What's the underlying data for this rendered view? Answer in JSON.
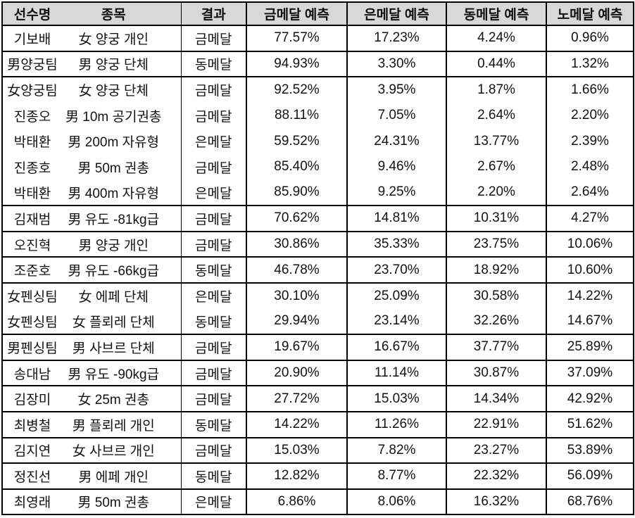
{
  "style": {
    "header_background": "#d8d8d8",
    "border_color": "#000000",
    "text_color": "#111111",
    "row_background": "#ffffff"
  },
  "table": {
    "header": {
      "athlete": "선수명",
      "event": "종목",
      "result": "결과",
      "gold": "금메달 예측",
      "silver": "은메달 예측",
      "bronze": "동메달 예측",
      "nomedal": "노메달 예측"
    },
    "groups": [
      {
        "rows": [
          {
            "athlete": "기보배",
            "event": "女 양궁 개인",
            "result": "금메달",
            "gold": "77.57%",
            "silver": "17.23%",
            "bronze": "4.24%",
            "nomedal": "0.96%"
          }
        ]
      },
      {
        "rows": [
          {
            "athlete": "男양궁팀",
            "event": "男 양궁 단체",
            "result": "동메달",
            "gold": "94.93%",
            "silver": "3.30%",
            "bronze": "0.44%",
            "nomedal": "1.32%"
          }
        ]
      },
      {
        "rows": [
          {
            "athlete": "女양궁팀",
            "event": "女 양궁 단체",
            "result": "금메달",
            "gold": "92.52%",
            "silver": "3.95%",
            "bronze": "1.87%",
            "nomedal": "1.66%"
          },
          {
            "athlete": "진종오",
            "event": "男 10m 공기권총",
            "result": "금메달",
            "gold": "88.11%",
            "silver": "7.05%",
            "bronze": "2.64%",
            "nomedal": "2.20%"
          },
          {
            "athlete": "박태환",
            "event": "男 200m 자유형",
            "result": "은메달",
            "gold": "59.52%",
            "silver": "24.31%",
            "bronze": "13.77%",
            "nomedal": "2.39%"
          },
          {
            "athlete": "진종호",
            "event": "男 50m 권총",
            "result": "금메달",
            "gold": "85.40%",
            "silver": "9.46%",
            "bronze": "2.67%",
            "nomedal": "2.48%"
          },
          {
            "athlete": "박태환",
            "event": "男 400m 자유형",
            "result": "은메달",
            "gold": "85.90%",
            "silver": "9.25%",
            "bronze": "2.20%",
            "nomedal": "2.64%"
          }
        ]
      },
      {
        "rows": [
          {
            "athlete": "김재범",
            "event": "男 유도 -81kg급",
            "result": "금메달",
            "gold": "70.62%",
            "silver": "14.81%",
            "bronze": "10.31%",
            "nomedal": "4.27%"
          }
        ]
      },
      {
        "rows": [
          {
            "athlete": "오진혁",
            "event": "男 양궁 개인",
            "result": "금메달",
            "gold": "30.86%",
            "silver": "35.33%",
            "bronze": "23.75%",
            "nomedal": "10.06%"
          }
        ]
      },
      {
        "rows": [
          {
            "athlete": "조준호",
            "event": "男 유도 -66kg급",
            "result": "동메달",
            "gold": "46.78%",
            "silver": "23.70%",
            "bronze": "18.92%",
            "nomedal": "10.60%"
          }
        ]
      },
      {
        "rows": [
          {
            "athlete": "女펜싱팀",
            "event": "女 에페 단체",
            "result": "은메달",
            "gold": "30.10%",
            "silver": "25.09%",
            "bronze": "30.58%",
            "nomedal": "14.22%"
          },
          {
            "athlete": "女펜싱팀",
            "event": "女 플뢰레 단체",
            "result": "동메달",
            "gold": "29.94%",
            "silver": "23.14%",
            "bronze": "32.26%",
            "nomedal": "14.67%"
          }
        ]
      },
      {
        "rows": [
          {
            "athlete": "男펜싱팀",
            "event": "男 사브르 단체",
            "result": "금메달",
            "gold": "19.67%",
            "silver": "16.67%",
            "bronze": "37.77%",
            "nomedal": "25.89%"
          }
        ]
      },
      {
        "rows": [
          {
            "athlete": "송대남",
            "event": "男 유도 -90kg급",
            "result": "금메달",
            "gold": "20.90%",
            "silver": "11.14%",
            "bronze": "30.87%",
            "nomedal": "37.09%"
          }
        ]
      },
      {
        "rows": [
          {
            "athlete": "김장미",
            "event": "女 25m 권총",
            "result": "금메달",
            "gold": "27.72%",
            "silver": "15.03%",
            "bronze": "14.34%",
            "nomedal": "42.92%"
          }
        ]
      },
      {
        "rows": [
          {
            "athlete": "최병철",
            "event": "男 플뢰레 개인",
            "result": "동메달",
            "gold": "14.22%",
            "silver": "11.26%",
            "bronze": "22.91%",
            "nomedal": "51.62%"
          }
        ]
      },
      {
        "rows": [
          {
            "athlete": "김지연",
            "event": "女 사브르 개인",
            "result": "금메달",
            "gold": "15.03%",
            "silver": "7.82%",
            "bronze": "23.27%",
            "nomedal": "53.89%"
          }
        ]
      },
      {
        "rows": [
          {
            "athlete": "정진선",
            "event": "男 에페 개인",
            "result": "동메달",
            "gold": "12.82%",
            "silver": "8.77%",
            "bronze": "22.32%",
            "nomedal": "56.09%"
          }
        ]
      },
      {
        "rows": [
          {
            "athlete": "최영래",
            "event": "男 50m 권총",
            "result": "은메달",
            "gold": "6.86%",
            "silver": "8.06%",
            "bronze": "16.32%",
            "nomedal": "68.76%"
          }
        ]
      }
    ]
  }
}
